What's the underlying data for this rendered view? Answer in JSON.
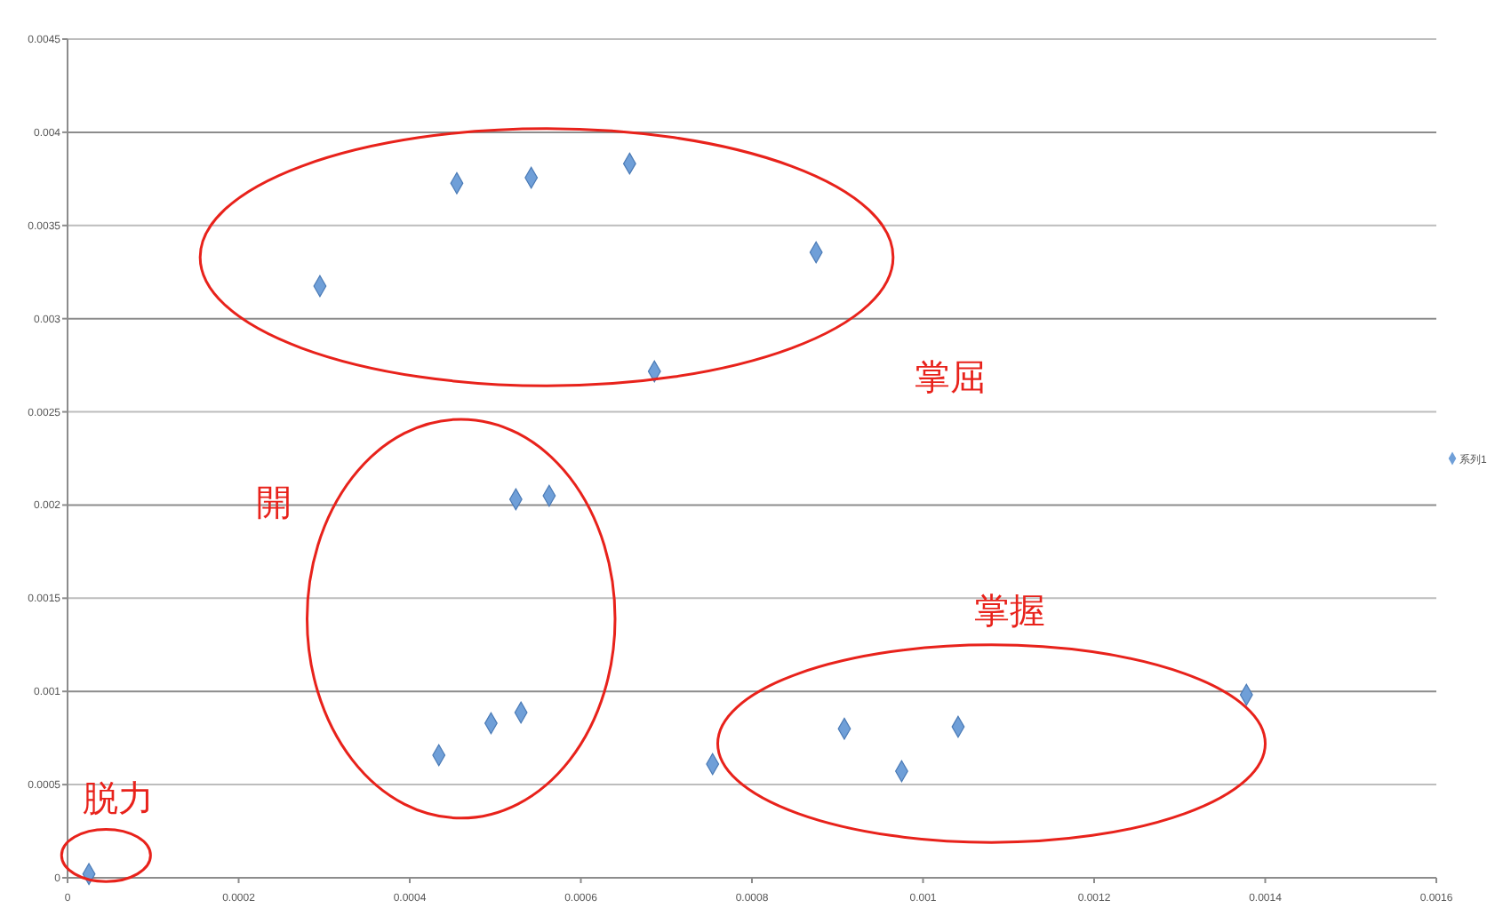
{
  "chart_data": {
    "type": "scatter",
    "marker": "diamond",
    "grid": "y",
    "legend": "right",
    "xlim": [
      0,
      0.0016
    ],
    "xticks": [
      0,
      0.0002,
      0.0004,
      0.0006,
      0.0008,
      0.001,
      0.0012,
      0.0014,
      0.0016
    ],
    "ylim": [
      0,
      0.0045
    ],
    "yticks": [
      0,
      0.0005,
      0.001,
      0.0015,
      0.002,
      0.0025,
      0.003,
      0.0035,
      0.004,
      0.0045
    ],
    "series": [
      {
        "name": "系列1",
        "color": "#6f9fd8",
        "x": [
          2.5e-05,
          0.000295,
          0.000455,
          0.000542,
          0.000657,
          0.000875,
          0.000686,
          0.000524,
          0.000563,
          0.000434,
          0.000495,
          0.00053,
          0.000754,
          0.000908,
          0.000975,
          0.001041,
          0.001378
        ],
        "values": [
          2e-05,
          0.003175,
          0.003727,
          0.003756,
          0.003832,
          0.003356,
          0.002717,
          0.002031,
          0.00205,
          0.000658,
          0.000829,
          0.000887,
          0.00061,
          0.0008,
          0.000572,
          0.00081,
          0.000982
        ]
      }
    ],
    "annotations": [
      "掌屈",
      "開",
      "掌握",
      "脱力"
    ]
  }
}
